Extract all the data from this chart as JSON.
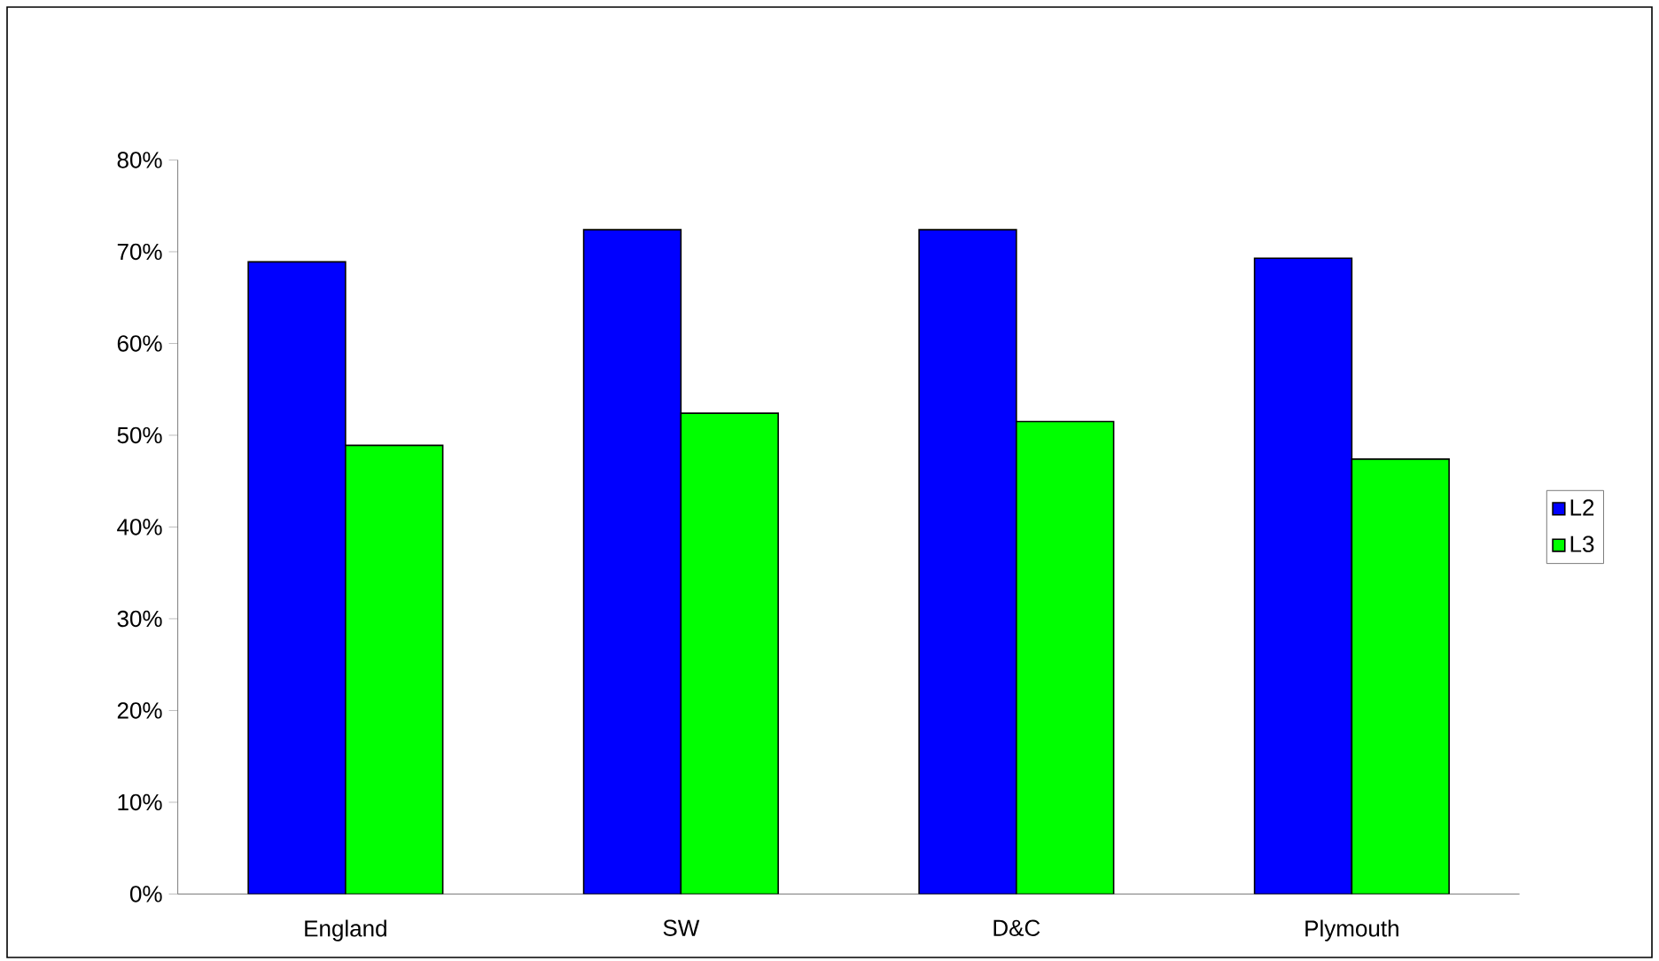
{
  "chart_data": {
    "type": "bar",
    "categories": [
      "England",
      "SW",
      "D&C",
      "Plymouth"
    ],
    "series": [
      {
        "name": "L2",
        "color": "#0000ff",
        "values": [
          68.9,
          72.4,
          72.4,
          69.3
        ]
      },
      {
        "name": "L3",
        "color": "#00ff00",
        "values": [
          48.9,
          52.4,
          51.5,
          47.4
        ]
      }
    ],
    "ylim": [
      0,
      80
    ],
    "yticks": [
      {
        "value": 0,
        "label": "0%"
      },
      {
        "value": 10,
        "label": "10%"
      },
      {
        "value": 20,
        "label": "20%"
      },
      {
        "value": 30,
        "label": "30%"
      },
      {
        "value": 40,
        "label": "40%"
      },
      {
        "value": 50,
        "label": "50%"
      },
      {
        "value": 60,
        "label": "60%"
      },
      {
        "value": 70,
        "label": "70%"
      },
      {
        "value": 80,
        "label": "80%"
      }
    ],
    "grid": false,
    "legend": "right"
  }
}
